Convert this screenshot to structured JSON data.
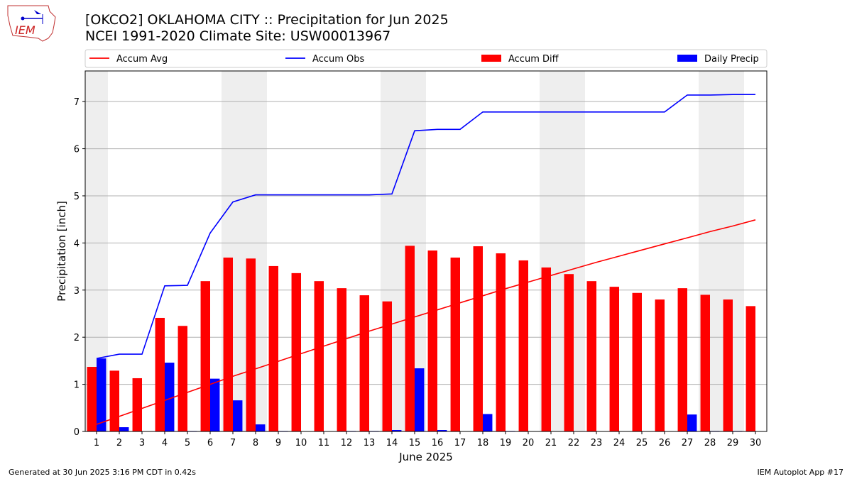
{
  "header": {
    "logo_text": "IEM",
    "title": "[OKCO2] OKLAHOMA CITY :: Precipitation for Jun 2025",
    "subtitle": "NCEI 1991-2020 Climate Site: USW00013967"
  },
  "footer": {
    "generated": "Generated at 30 Jun 2025 3:16 PM CDT in 0.42s",
    "app": "IEM Autoplot App #17"
  },
  "chart_data": {
    "type": "bar",
    "title": "[OKCO2] OKLAHOMA CITY :: Precipitation for Jun 2025",
    "xlabel": "June 2025",
    "ylabel": "Precipitation [inch]",
    "ylim": [
      0,
      7.65
    ],
    "yticks": [
      0,
      1,
      2,
      3,
      4,
      5,
      6,
      7
    ],
    "grid": true,
    "legend_placement": "top",
    "weekend_shading": [
      [
        1,
        1
      ],
      [
        7,
        8
      ],
      [
        14,
        15
      ],
      [
        21,
        22
      ],
      [
        28,
        29
      ]
    ],
    "x": [
      1,
      2,
      3,
      4,
      5,
      6,
      7,
      8,
      9,
      10,
      11,
      12,
      13,
      14,
      15,
      16,
      17,
      18,
      19,
      20,
      21,
      22,
      23,
      24,
      25,
      26,
      27,
      28,
      29,
      30
    ],
    "series": [
      {
        "name": "Accum Avg",
        "kind": "line",
        "color": "#ff0000",
        "values": [
          0.15,
          0.32,
          0.49,
          0.66,
          0.83,
          1.0,
          1.17,
          1.33,
          1.49,
          1.65,
          1.81,
          1.97,
          2.13,
          2.28,
          2.43,
          2.58,
          2.73,
          2.88,
          3.03,
          3.17,
          3.31,
          3.45,
          3.59,
          3.72,
          3.85,
          3.98,
          4.11,
          4.24,
          4.36,
          4.49
        ]
      },
      {
        "name": "Accum Obs",
        "kind": "line",
        "color": "#0000ff",
        "values": [
          1.55,
          1.64,
          1.64,
          3.09,
          3.1,
          4.21,
          4.87,
          5.02,
          5.02,
          5.02,
          5.02,
          5.02,
          5.02,
          5.04,
          6.38,
          6.41,
          6.41,
          6.78,
          6.78,
          6.78,
          6.78,
          6.78,
          6.78,
          6.78,
          6.78,
          6.78,
          7.14,
          7.14,
          7.15,
          7.15
        ]
      },
      {
        "name": "Accum Diff",
        "kind": "bar",
        "color": "#ff0000",
        "values": [
          1.37,
          1.29,
          1.13,
          2.41,
          2.24,
          3.19,
          3.69,
          3.67,
          3.51,
          3.36,
          3.19,
          3.04,
          2.89,
          2.76,
          3.94,
          3.84,
          3.69,
          3.93,
          3.78,
          3.63,
          3.48,
          3.34,
          3.19,
          3.07,
          2.94,
          2.8,
          3.04,
          2.9,
          2.8,
          2.66
        ]
      },
      {
        "name": "Daily Precip",
        "kind": "bar",
        "color": "#0000ff",
        "values": [
          1.55,
          0.09,
          0.0,
          1.46,
          0.01,
          1.12,
          0.66,
          0.15,
          0.01,
          0.0,
          0.0,
          0.01,
          0.01,
          0.03,
          1.34,
          0.03,
          0.0,
          0.37,
          0.01,
          0.0,
          0.0,
          0.0,
          0.0,
          0.0,
          0.0,
          0.0,
          0.36,
          0.01,
          0.01,
          0.0
        ]
      }
    ]
  }
}
